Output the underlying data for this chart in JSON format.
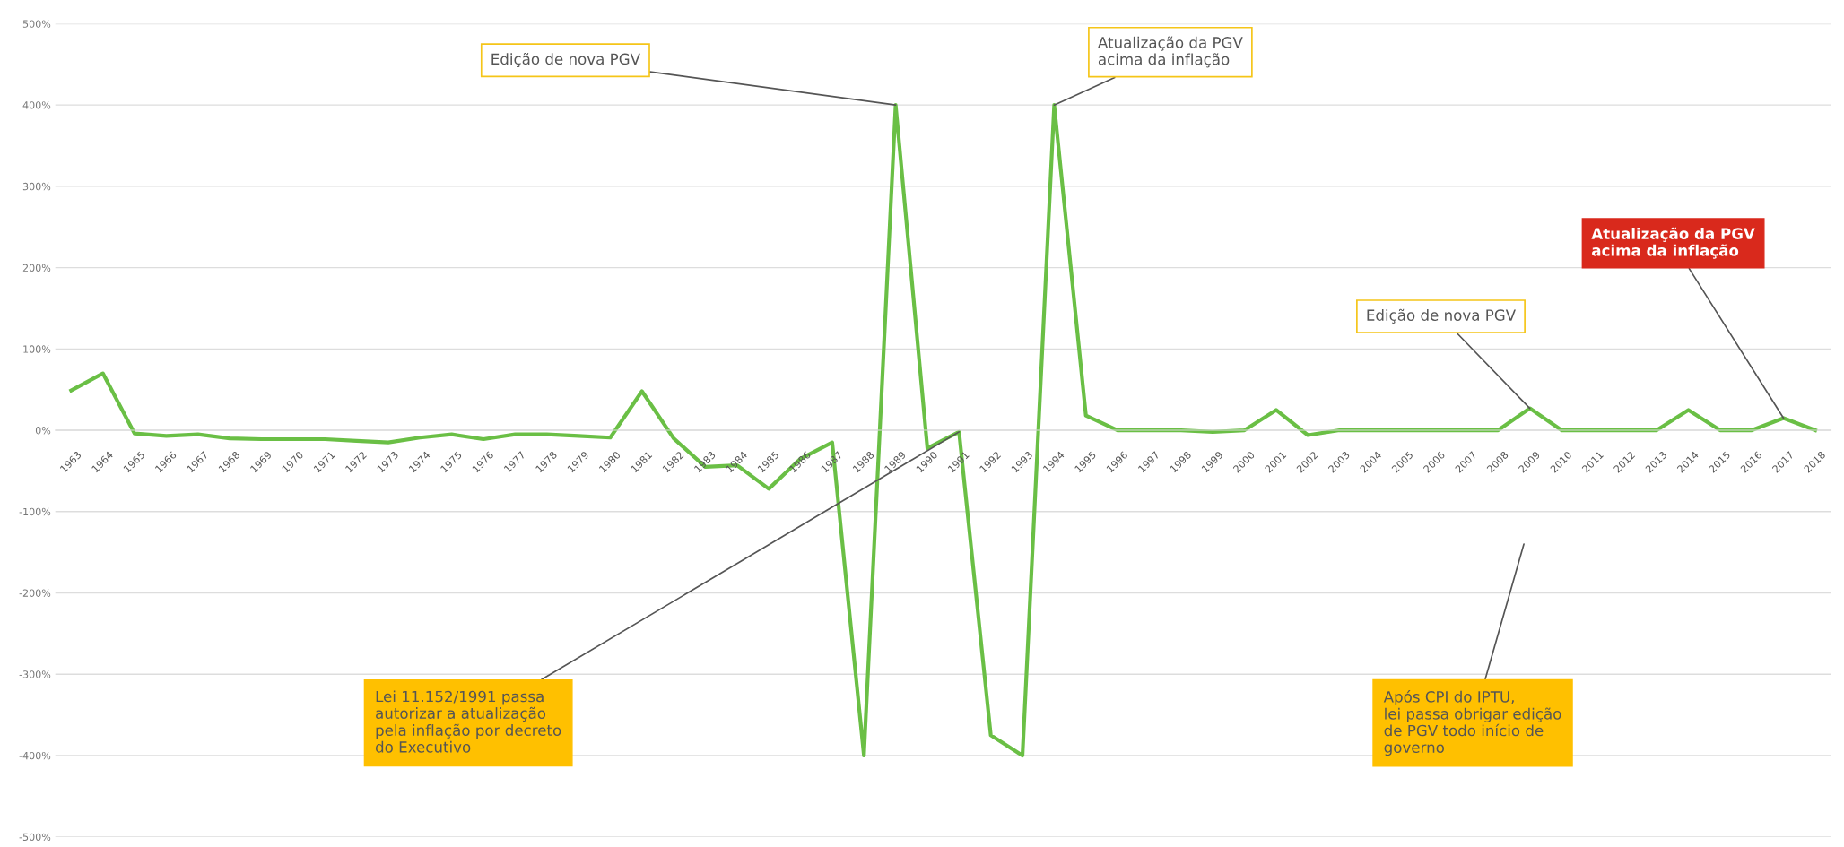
{
  "chart_data": {
    "type": "line",
    "categories": [
      "1963",
      "1964",
      "1965",
      "1966",
      "1967",
      "1968",
      "1969",
      "1970",
      "1971",
      "1972",
      "1973",
      "1974",
      "1975",
      "1976",
      "1977",
      "1978",
      "1979",
      "1980",
      "1981",
      "1982",
      "1983",
      "1984",
      "1985",
      "1986",
      "1987",
      "1988",
      "1989",
      "1990",
      "1991",
      "1992",
      "1993",
      "1994",
      "1995",
      "1996",
      "1997",
      "1998",
      "1999",
      "2000",
      "2001",
      "2002",
      "2003",
      "2004",
      "2005",
      "2006",
      "2007",
      "2008",
      "2009",
      "2010",
      "2011",
      "2012",
      "2013",
      "2014",
      "2015",
      "2016",
      "2017",
      "2018"
    ],
    "series": [
      {
        "color": "#6abf45",
        "values": [
          49,
          70,
          -4,
          -7,
          -5,
          -10,
          -11,
          -11,
          -11,
          -13,
          -15,
          -9,
          -5,
          -11,
          -5,
          -5,
          -7,
          -9,
          48,
          -10,
          -45,
          -43,
          -72,
          -35,
          -15,
          -400,
          400,
          -22,
          -2,
          -375,
          -400,
          400,
          18,
          0,
          0,
          0,
          -2,
          0,
          25,
          -6,
          0,
          0,
          0,
          0,
          0,
          0,
          27,
          0,
          0,
          0,
          0,
          25,
          0,
          0,
          15,
          0
        ]
      }
    ],
    "ylim": [
      -500,
      500
    ],
    "yticks": [
      {
        "value": -500,
        "label": "-500%"
      },
      {
        "value": -400,
        "label": "-400%"
      },
      {
        "value": -300,
        "label": "-300%"
      },
      {
        "value": -200,
        "label": "-200%"
      },
      {
        "value": -100,
        "label": "-100%"
      },
      {
        "value": 0,
        "label": "0%"
      },
      {
        "value": 100,
        "label": "100%"
      },
      {
        "value": 200,
        "label": "200%"
      },
      {
        "value": 300,
        "label": "300%"
      },
      {
        "value": 400,
        "label": "400%"
      },
      {
        "value": 500,
        "label": "500%"
      }
    ],
    "grid": "y",
    "legend": false,
    "marker": "none",
    "line_style": "solid",
    "annotations": [
      {
        "text": "Edição de nova PGV",
        "x": "1989",
        "y": 400
      },
      {
        "text": "Atualização da PGV\nacima da inflação",
        "x": "1994",
        "y": 400
      },
      {
        "text": "Edição de nova PGV",
        "x": "2009",
        "y": 27
      },
      {
        "text": "Atualização da PGV\nacima da inflação",
        "x": "2017",
        "y": 15
      },
      {
        "text": "Lei 11.152/1991 passa\nautorizar a atualização\npela inflação por decreto\ndo Executivo",
        "x": "1991",
        "y": -2
      },
      "Após CPI do IPTU,\nlei passa obrigar edição\nde PGV todo início de\ngoverno"
    ]
  }
}
